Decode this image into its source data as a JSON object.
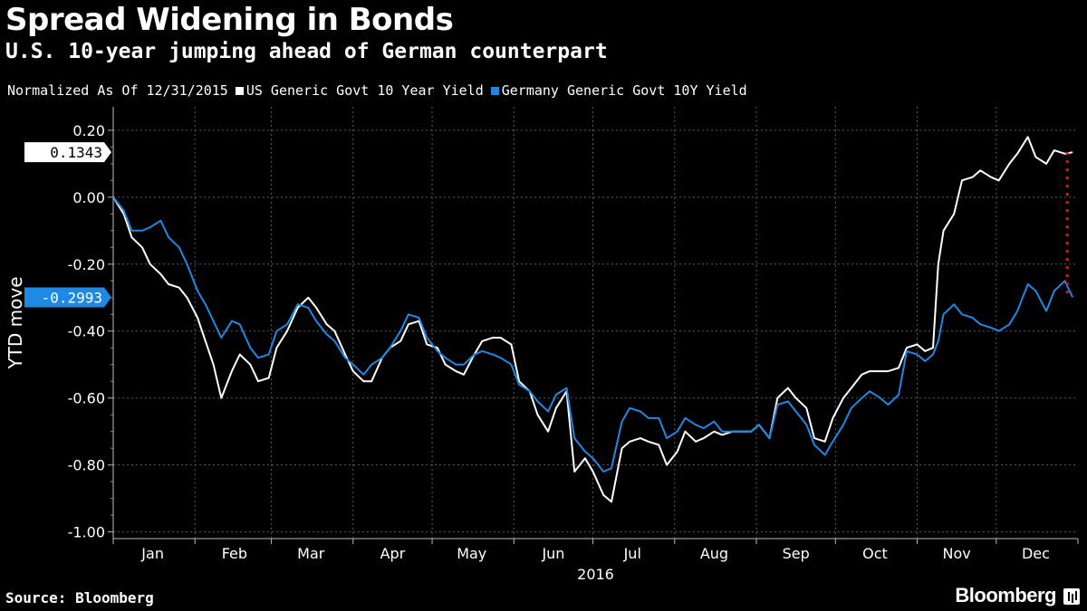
{
  "header": {
    "title": "Spread Widening in Bonds",
    "subtitle": "U.S. 10-year jumping ahead of German counterpart"
  },
  "legend": {
    "note": "Normalized As Of 12/31/2015",
    "items": [
      {
        "label": "US Generic Govt 10 Year Yield",
        "color": "#ffffff"
      },
      {
        "label": "Germany Generic Govt 10Y Yield",
        "color": "#1e88e5"
      }
    ]
  },
  "footer": {
    "source": "Source: Bloomberg",
    "brand": "Bloomberg"
  },
  "chart_data": {
    "type": "line",
    "ylabel": "YTD move",
    "xlabel": "2016",
    "ylim": [
      -1.02,
      0.27
    ],
    "yticks": [
      0.2,
      0.0,
      -0.2,
      -0.4,
      -0.6,
      -0.8,
      -1.0
    ],
    "ytick_labels": [
      "0.20",
      "0.00",
      "-0.20",
      "-0.40",
      "-0.60",
      "-0.80",
      "-1.00"
    ],
    "months": [
      "Jan",
      "Feb",
      "Mar",
      "Apr",
      "May",
      "Jun",
      "Jul",
      "Aug",
      "Sep",
      "Oct",
      "Nov",
      "Dec"
    ],
    "grid": true,
    "background": "#000000",
    "last_value_badges": [
      {
        "series": "US Generic Govt 10 Year Yield",
        "label": "0.1343",
        "value": 0.1343
      },
      {
        "series": "Germany Generic Govt 10Y Yield",
        "label": "-0.2993",
        "value": -0.2993
      }
    ],
    "spread_marker_color": "#e8141c",
    "series": [
      {
        "name": "US Generic Govt 10 Year Yield",
        "color": "#ffffff",
        "points": [
          [
            "2016-01-01",
            0.0
          ],
          [
            "2016-01-05",
            -0.05
          ],
          [
            "2016-01-08",
            -0.12
          ],
          [
            "2016-01-12",
            -0.15
          ],
          [
            "2016-01-15",
            -0.2
          ],
          [
            "2016-01-19",
            -0.23
          ],
          [
            "2016-01-22",
            -0.26
          ],
          [
            "2016-01-26",
            -0.27
          ],
          [
            "2016-01-29",
            -0.3
          ],
          [
            "2016-02-02",
            -0.36
          ],
          [
            "2016-02-05",
            -0.43
          ],
          [
            "2016-02-08",
            -0.5
          ],
          [
            "2016-02-11",
            -0.6
          ],
          [
            "2016-02-15",
            -0.52
          ],
          [
            "2016-02-18",
            -0.47
          ],
          [
            "2016-02-22",
            -0.5
          ],
          [
            "2016-02-25",
            -0.55
          ],
          [
            "2016-02-29",
            -0.54
          ],
          [
            "2016-03-03",
            -0.45
          ],
          [
            "2016-03-07",
            -0.4
          ],
          [
            "2016-03-11",
            -0.33
          ],
          [
            "2016-03-15",
            -0.3
          ],
          [
            "2016-03-18",
            -0.33
          ],
          [
            "2016-03-22",
            -0.38
          ],
          [
            "2016-03-25",
            -0.4
          ],
          [
            "2016-03-29",
            -0.47
          ],
          [
            "2016-04-01",
            -0.52
          ],
          [
            "2016-04-05",
            -0.55
          ],
          [
            "2016-04-08",
            -0.55
          ],
          [
            "2016-04-12",
            -0.48
          ],
          [
            "2016-04-15",
            -0.45
          ],
          [
            "2016-04-19",
            -0.43
          ],
          [
            "2016-04-22",
            -0.38
          ],
          [
            "2016-04-26",
            -0.37
          ],
          [
            "2016-04-29",
            -0.44
          ],
          [
            "2016-05-03",
            -0.45
          ],
          [
            "2016-05-06",
            -0.5
          ],
          [
            "2016-05-10",
            -0.52
          ],
          [
            "2016-05-13",
            -0.53
          ],
          [
            "2016-05-17",
            -0.47
          ],
          [
            "2016-05-20",
            -0.43
          ],
          [
            "2016-05-24",
            -0.42
          ],
          [
            "2016-05-27",
            -0.42
          ],
          [
            "2016-05-31",
            -0.44
          ],
          [
            "2016-06-03",
            -0.55
          ],
          [
            "2016-06-07",
            -0.58
          ],
          [
            "2016-06-10",
            -0.65
          ],
          [
            "2016-06-14",
            -0.7
          ],
          [
            "2016-06-17",
            -0.63
          ],
          [
            "2016-06-21",
            -0.58
          ],
          [
            "2016-06-24",
            -0.82
          ],
          [
            "2016-06-28",
            -0.78
          ],
          [
            "2016-07-01",
            -0.82
          ],
          [
            "2016-07-05",
            -0.89
          ],
          [
            "2016-07-08",
            -0.91
          ],
          [
            "2016-07-12",
            -0.75
          ],
          [
            "2016-07-15",
            -0.73
          ],
          [
            "2016-07-19",
            -0.72
          ],
          [
            "2016-07-22",
            -0.73
          ],
          [
            "2016-07-26",
            -0.74
          ],
          [
            "2016-07-29",
            -0.8
          ],
          [
            "2016-08-02",
            -0.76
          ],
          [
            "2016-08-05",
            -0.7
          ],
          [
            "2016-08-09",
            -0.73
          ],
          [
            "2016-08-12",
            -0.72
          ],
          [
            "2016-08-16",
            -0.7
          ],
          [
            "2016-08-19",
            -0.71
          ],
          [
            "2016-08-23",
            -0.7
          ],
          [
            "2016-08-26",
            -0.7
          ],
          [
            "2016-08-30",
            -0.7
          ],
          [
            "2016-09-02",
            -0.68
          ],
          [
            "2016-09-06",
            -0.72
          ],
          [
            "2016-09-09",
            -0.6
          ],
          [
            "2016-09-13",
            -0.57
          ],
          [
            "2016-09-16",
            -0.6
          ],
          [
            "2016-09-20",
            -0.63
          ],
          [
            "2016-09-23",
            -0.72
          ],
          [
            "2016-09-27",
            -0.73
          ],
          [
            "2016-09-30",
            -0.66
          ],
          [
            "2016-10-04",
            -0.6
          ],
          [
            "2016-10-07",
            -0.57
          ],
          [
            "2016-10-11",
            -0.53
          ],
          [
            "2016-10-14",
            -0.52
          ],
          [
            "2016-10-18",
            -0.52
          ],
          [
            "2016-10-21",
            -0.52
          ],
          [
            "2016-10-25",
            -0.51
          ],
          [
            "2016-10-28",
            -0.45
          ],
          [
            "2016-11-01",
            -0.44
          ],
          [
            "2016-11-04",
            -0.46
          ],
          [
            "2016-11-07",
            -0.45
          ],
          [
            "2016-11-09",
            -0.2
          ],
          [
            "2016-11-11",
            -0.1
          ],
          [
            "2016-11-15",
            -0.05
          ],
          [
            "2016-11-18",
            0.05
          ],
          [
            "2016-11-22",
            0.06
          ],
          [
            "2016-11-25",
            0.08
          ],
          [
            "2016-11-29",
            0.06
          ],
          [
            "2016-12-02",
            0.05
          ],
          [
            "2016-12-06",
            0.1
          ],
          [
            "2016-12-09",
            0.13
          ],
          [
            "2016-12-13",
            0.18
          ],
          [
            "2016-12-16",
            0.12
          ],
          [
            "2016-12-20",
            0.1
          ],
          [
            "2016-12-23",
            0.14
          ],
          [
            "2016-12-27",
            0.13
          ],
          [
            "2016-12-30",
            0.1343
          ]
        ]
      },
      {
        "name": "Germany Generic Govt 10Y Yield",
        "color": "#1e88e5",
        "points": [
          [
            "2016-01-01",
            0.0
          ],
          [
            "2016-01-05",
            -0.04
          ],
          [
            "2016-01-08",
            -0.1
          ],
          [
            "2016-01-12",
            -0.1
          ],
          [
            "2016-01-15",
            -0.09
          ],
          [
            "2016-01-19",
            -0.07
          ],
          [
            "2016-01-22",
            -0.12
          ],
          [
            "2016-01-26",
            -0.15
          ],
          [
            "2016-01-29",
            -0.2
          ],
          [
            "2016-02-02",
            -0.28
          ],
          [
            "2016-02-05",
            -0.32
          ],
          [
            "2016-02-08",
            -0.37
          ],
          [
            "2016-02-11",
            -0.42
          ],
          [
            "2016-02-15",
            -0.37
          ],
          [
            "2016-02-18",
            -0.38
          ],
          [
            "2016-02-22",
            -0.45
          ],
          [
            "2016-02-25",
            -0.48
          ],
          [
            "2016-02-29",
            -0.47
          ],
          [
            "2016-03-03",
            -0.4
          ],
          [
            "2016-03-07",
            -0.38
          ],
          [
            "2016-03-11",
            -0.32
          ],
          [
            "2016-03-15",
            -0.33
          ],
          [
            "2016-03-18",
            -0.37
          ],
          [
            "2016-03-22",
            -0.41
          ],
          [
            "2016-03-25",
            -0.43
          ],
          [
            "2016-03-29",
            -0.48
          ],
          [
            "2016-04-01",
            -0.5
          ],
          [
            "2016-04-05",
            -0.53
          ],
          [
            "2016-04-08",
            -0.5
          ],
          [
            "2016-04-12",
            -0.48
          ],
          [
            "2016-04-15",
            -0.45
          ],
          [
            "2016-04-19",
            -0.4
          ],
          [
            "2016-04-22",
            -0.35
          ],
          [
            "2016-04-26",
            -0.36
          ],
          [
            "2016-04-29",
            -0.42
          ],
          [
            "2016-05-03",
            -0.46
          ],
          [
            "2016-05-06",
            -0.48
          ],
          [
            "2016-05-10",
            -0.5
          ],
          [
            "2016-05-13",
            -0.5
          ],
          [
            "2016-05-17",
            -0.47
          ],
          [
            "2016-05-20",
            -0.46
          ],
          [
            "2016-05-24",
            -0.47
          ],
          [
            "2016-05-27",
            -0.48
          ],
          [
            "2016-05-31",
            -0.5
          ],
          [
            "2016-06-03",
            -0.56
          ],
          [
            "2016-06-07",
            -0.58
          ],
          [
            "2016-06-10",
            -0.61
          ],
          [
            "2016-06-14",
            -0.64
          ],
          [
            "2016-06-17",
            -0.59
          ],
          [
            "2016-06-21",
            -0.57
          ],
          [
            "2016-06-24",
            -0.72
          ],
          [
            "2016-06-28",
            -0.76
          ],
          [
            "2016-07-01",
            -0.78
          ],
          [
            "2016-07-05",
            -0.82
          ],
          [
            "2016-07-08",
            -0.81
          ],
          [
            "2016-07-12",
            -0.67
          ],
          [
            "2016-07-15",
            -0.63
          ],
          [
            "2016-07-19",
            -0.64
          ],
          [
            "2016-07-22",
            -0.66
          ],
          [
            "2016-07-26",
            -0.66
          ],
          [
            "2016-07-29",
            -0.72
          ],
          [
            "2016-08-02",
            -0.7
          ],
          [
            "2016-08-05",
            -0.66
          ],
          [
            "2016-08-09",
            -0.68
          ],
          [
            "2016-08-12",
            -0.69
          ],
          [
            "2016-08-16",
            -0.67
          ],
          [
            "2016-08-19",
            -0.7
          ],
          [
            "2016-08-23",
            -0.7
          ],
          [
            "2016-08-26",
            -0.7
          ],
          [
            "2016-08-30",
            -0.7
          ],
          [
            "2016-09-02",
            -0.68
          ],
          [
            "2016-09-06",
            -0.72
          ],
          [
            "2016-09-09",
            -0.62
          ],
          [
            "2016-09-13",
            -0.61
          ],
          [
            "2016-09-16",
            -0.64
          ],
          [
            "2016-09-20",
            -0.68
          ],
          [
            "2016-09-23",
            -0.74
          ],
          [
            "2016-09-27",
            -0.77
          ],
          [
            "2016-09-30",
            -0.73
          ],
          [
            "2016-10-04",
            -0.68
          ],
          [
            "2016-10-07",
            -0.63
          ],
          [
            "2016-10-11",
            -0.6
          ],
          [
            "2016-10-14",
            -0.58
          ],
          [
            "2016-10-18",
            -0.6
          ],
          [
            "2016-10-21",
            -0.62
          ],
          [
            "2016-10-25",
            -0.59
          ],
          [
            "2016-10-28",
            -0.46
          ],
          [
            "2016-11-01",
            -0.47
          ],
          [
            "2016-11-04",
            -0.49
          ],
          [
            "2016-11-07",
            -0.47
          ],
          [
            "2016-11-09",
            -0.43
          ],
          [
            "2016-11-11",
            -0.35
          ],
          [
            "2016-11-15",
            -0.32
          ],
          [
            "2016-11-18",
            -0.35
          ],
          [
            "2016-11-22",
            -0.36
          ],
          [
            "2016-11-25",
            -0.38
          ],
          [
            "2016-11-29",
            -0.39
          ],
          [
            "2016-12-02",
            -0.4
          ],
          [
            "2016-12-06",
            -0.38
          ],
          [
            "2016-12-09",
            -0.34
          ],
          [
            "2016-12-13",
            -0.26
          ],
          [
            "2016-12-16",
            -0.28
          ],
          [
            "2016-12-20",
            -0.34
          ],
          [
            "2016-12-23",
            -0.28
          ],
          [
            "2016-12-27",
            -0.25
          ],
          [
            "2016-12-30",
            -0.2993
          ]
        ]
      }
    ]
  }
}
